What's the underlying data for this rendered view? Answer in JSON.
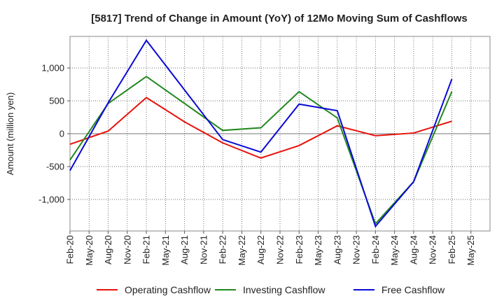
{
  "chart_data": {
    "type": "line",
    "title": "[5817]  Trend of Change in Amount (YoY) of 12Mo Moving Sum of Cashflows",
    "xlabel": "",
    "ylabel": "Amount (million yen)",
    "ylim": [
      -1480,
      1480
    ],
    "yticks": [
      -1000,
      -500,
      0,
      500,
      1000
    ],
    "ytick_labels": [
      "-1,000",
      "-500",
      "0",
      "500",
      "1,000"
    ],
    "categories": [
      "Feb-20",
      "May-20",
      "Aug-20",
      "Nov-20",
      "Feb-21",
      "May-21",
      "Aug-21",
      "Nov-21",
      "Feb-22",
      "May-22",
      "Aug-22",
      "Nov-22",
      "Feb-23",
      "May-23",
      "Aug-23",
      "Nov-23",
      "Feb-24",
      "May-24",
      "Aug-24",
      "Nov-24",
      "Feb-25",
      "May-25"
    ],
    "legend_position": "bottom",
    "series": [
      {
        "name": "Operating Cashflow",
        "color": "#e8120c",
        "points": [
          {
            "x": "Feb-20",
            "y": -160
          },
          {
            "x": "Aug-20",
            "y": 40
          },
          {
            "x": "Feb-21",
            "y": 550
          },
          {
            "x": "Aug-21",
            "y": 180
          },
          {
            "x": "Feb-22",
            "y": -140
          },
          {
            "x": "Aug-22",
            "y": -370
          },
          {
            "x": "Feb-23",
            "y": -180
          },
          {
            "x": "Aug-23",
            "y": 120
          },
          {
            "x": "Feb-24",
            "y": -30
          },
          {
            "x": "Aug-24",
            "y": 10
          },
          {
            "x": "Feb-25",
            "y": 190
          }
        ]
      },
      {
        "name": "Investing Cashflow",
        "color": "#22881e",
        "points": [
          {
            "x": "Feb-20",
            "y": -400
          },
          {
            "x": "Aug-20",
            "y": 460
          },
          {
            "x": "Feb-21",
            "y": 870
          },
          {
            "x": "Feb-22",
            "y": 50
          },
          {
            "x": "Aug-22",
            "y": 90
          },
          {
            "x": "Feb-23",
            "y": 640
          },
          {
            "x": "Aug-23",
            "y": 240
          },
          {
            "x": "Feb-24",
            "y": -1370
          },
          {
            "x": "Aug-24",
            "y": -730
          },
          {
            "x": "Feb-25",
            "y": 640
          }
        ]
      },
      {
        "name": "Free Cashflow",
        "color": "#0a0ad6",
        "points": [
          {
            "x": "Feb-20",
            "y": -560
          },
          {
            "x": "Aug-20",
            "y": 470
          },
          {
            "x": "Feb-21",
            "y": 1420
          },
          {
            "x": "Feb-22",
            "y": -90
          },
          {
            "x": "Aug-22",
            "y": -280
          },
          {
            "x": "Feb-23",
            "y": 450
          },
          {
            "x": "Aug-23",
            "y": 350
          },
          {
            "x": "Feb-24",
            "y": -1410
          },
          {
            "x": "Aug-24",
            "y": -730
          },
          {
            "x": "Feb-25",
            "y": 830
          }
        ]
      }
    ]
  }
}
